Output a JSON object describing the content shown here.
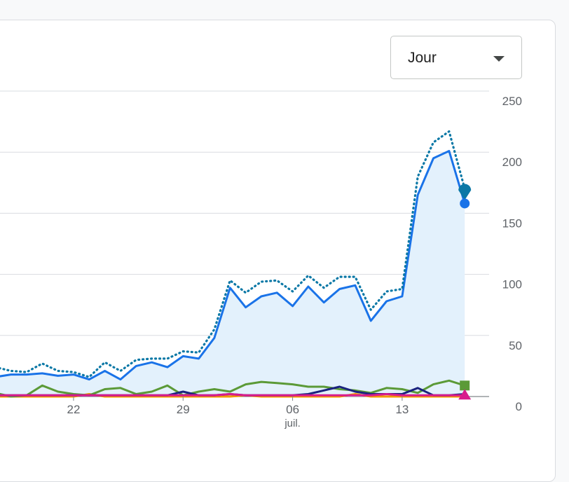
{
  "period_select": {
    "value": "Jour"
  },
  "chart_data": {
    "type": "line",
    "title": "",
    "xlabel": "",
    "ylabel": "",
    "x_ticks": [
      {
        "label": "22",
        "day": 22
      },
      {
        "label": "29",
        "day": 29
      },
      {
        "label": "06",
        "day": 36
      },
      {
        "label": "13",
        "day": 43
      }
    ],
    "month_labels": [
      {
        "label": "juil.",
        "day": 36
      }
    ],
    "ylim": [
      0,
      250
    ],
    "y_ticks": [
      0,
      50,
      100,
      150,
      200,
      250
    ],
    "grid": true,
    "x_day_range": [
      17.3,
      48.2
    ],
    "colors": {
      "primary": "#1a73e8",
      "dotted": "#0b78a6",
      "area": "#e3f1fc",
      "green": "#5b9a37",
      "navy": "#1a237e",
      "pink": "#d81b8c",
      "orange": "#f29900",
      "grid": "#dadce0"
    },
    "series": [
      {
        "key": "dotted",
        "style": "dotted",
        "color": "#0b78a6",
        "marker": "pin",
        "points": [
          [
            17,
            24
          ],
          [
            18,
            21
          ],
          [
            19,
            20
          ],
          [
            20,
            27
          ],
          [
            21,
            21
          ],
          [
            22,
            20
          ],
          [
            23,
            16
          ],
          [
            24,
            28
          ],
          [
            25,
            21
          ],
          [
            26,
            30
          ],
          [
            27,
            31
          ],
          [
            28,
            31
          ],
          [
            29,
            37
          ],
          [
            30,
            36
          ],
          [
            31,
            55
          ],
          [
            32,
            95
          ],
          [
            33,
            85
          ],
          [
            34,
            94
          ],
          [
            35,
            95
          ],
          [
            36,
            86
          ],
          [
            37,
            99
          ],
          [
            38,
            89
          ],
          [
            39,
            98
          ],
          [
            40,
            98
          ],
          [
            41,
            71
          ],
          [
            42,
            86
          ],
          [
            43,
            88
          ],
          [
            44,
            180
          ],
          [
            45,
            208
          ],
          [
            46,
            217
          ],
          [
            47,
            170
          ]
        ]
      },
      {
        "key": "primary",
        "style": "solid",
        "color": "#1a73e8",
        "marker": "circle",
        "area": true,
        "points": [
          [
            17,
            16
          ],
          [
            18,
            18
          ],
          [
            19,
            18
          ],
          [
            20,
            19
          ],
          [
            21,
            17
          ],
          [
            22,
            18
          ],
          [
            23,
            14
          ],
          [
            24,
            21
          ],
          [
            25,
            14
          ],
          [
            26,
            25
          ],
          [
            27,
            28
          ],
          [
            28,
            24
          ],
          [
            29,
            33
          ],
          [
            30,
            31
          ],
          [
            31,
            48
          ],
          [
            32,
            89
          ],
          [
            33,
            73
          ],
          [
            34,
            82
          ],
          [
            35,
            85
          ],
          [
            36,
            74
          ],
          [
            37,
            90
          ],
          [
            38,
            77
          ],
          [
            39,
            88
          ],
          [
            40,
            91
          ],
          [
            41,
            62
          ],
          [
            42,
            78
          ],
          [
            43,
            82
          ],
          [
            44,
            165
          ],
          [
            45,
            195
          ],
          [
            46,
            201
          ],
          [
            47,
            158
          ]
        ]
      },
      {
        "key": "green",
        "style": "solid",
        "color": "#5b9a37",
        "marker": "square",
        "points": [
          [
            17,
            3
          ],
          [
            18,
            0
          ],
          [
            19,
            1
          ],
          [
            20,
            9
          ],
          [
            21,
            4
          ],
          [
            22,
            2
          ],
          [
            23,
            1
          ],
          [
            24,
            6
          ],
          [
            25,
            7
          ],
          [
            26,
            2
          ],
          [
            27,
            4
          ],
          [
            28,
            9
          ],
          [
            29,
            1
          ],
          [
            30,
            4
          ],
          [
            31,
            6
          ],
          [
            32,
            4
          ],
          [
            33,
            10
          ],
          [
            34,
            12
          ],
          [
            35,
            11
          ],
          [
            36,
            10
          ],
          [
            37,
            8
          ],
          [
            38,
            8
          ],
          [
            39,
            6
          ],
          [
            40,
            5
          ],
          [
            41,
            3
          ],
          [
            42,
            7
          ],
          [
            43,
            6
          ],
          [
            44,
            3
          ],
          [
            45,
            10
          ],
          [
            46,
            13
          ],
          [
            47,
            9
          ]
        ]
      },
      {
        "key": "navy",
        "style": "solid",
        "color": "#1a237e",
        "marker": "none",
        "points": [
          [
            17,
            1
          ],
          [
            18,
            1
          ],
          [
            19,
            1
          ],
          [
            20,
            1
          ],
          [
            21,
            1
          ],
          [
            22,
            1
          ],
          [
            23,
            1
          ],
          [
            24,
            1
          ],
          [
            25,
            1
          ],
          [
            26,
            1
          ],
          [
            27,
            1
          ],
          [
            28,
            1
          ],
          [
            29,
            4
          ],
          [
            30,
            1
          ],
          [
            31,
            1
          ],
          [
            32,
            2
          ],
          [
            33,
            1
          ],
          [
            34,
            1
          ],
          [
            35,
            1
          ],
          [
            36,
            1
          ],
          [
            37,
            2
          ],
          [
            38,
            5
          ],
          [
            39,
            8
          ],
          [
            40,
            4
          ],
          [
            41,
            2
          ],
          [
            42,
            2
          ],
          [
            43,
            2
          ],
          [
            44,
            7
          ],
          [
            45,
            1
          ],
          [
            46,
            1
          ],
          [
            47,
            2
          ]
        ]
      },
      {
        "key": "orange",
        "style": "solid",
        "color": "#f29900",
        "marker": "none",
        "points": [
          [
            17,
            0
          ],
          [
            18,
            0
          ],
          [
            19,
            0
          ],
          [
            20,
            0
          ],
          [
            21,
            0
          ],
          [
            22,
            0
          ],
          [
            23,
            2
          ],
          [
            24,
            0
          ],
          [
            25,
            0
          ],
          [
            26,
            0
          ],
          [
            27,
            0
          ],
          [
            28,
            0
          ],
          [
            29,
            0
          ],
          [
            30,
            0
          ],
          [
            31,
            0
          ],
          [
            32,
            0
          ],
          [
            33,
            1
          ],
          [
            34,
            0
          ],
          [
            35,
            0
          ],
          [
            36,
            0
          ],
          [
            37,
            0
          ],
          [
            38,
            0
          ],
          [
            39,
            0
          ],
          [
            40,
            2
          ],
          [
            41,
            0
          ],
          [
            42,
            0
          ],
          [
            43,
            0
          ],
          [
            44,
            0
          ],
          [
            45,
            0
          ],
          [
            46,
            0
          ],
          [
            47,
            0
          ]
        ]
      },
      {
        "key": "pink",
        "style": "solid",
        "color": "#d81b8c",
        "marker": "triangle",
        "points": [
          [
            17,
            1
          ],
          [
            18,
            1
          ],
          [
            19,
            1
          ],
          [
            20,
            1
          ],
          [
            21,
            1
          ],
          [
            22,
            1
          ],
          [
            23,
            1
          ],
          [
            24,
            1
          ],
          [
            25,
            1
          ],
          [
            26,
            1
          ],
          [
            27,
            1
          ],
          [
            28,
            1
          ],
          [
            29,
            1
          ],
          [
            30,
            1
          ],
          [
            31,
            1
          ],
          [
            32,
            2
          ],
          [
            33,
            1
          ],
          [
            34,
            1
          ],
          [
            35,
            1
          ],
          [
            36,
            1
          ],
          [
            37,
            1
          ],
          [
            38,
            1
          ],
          [
            39,
            1
          ],
          [
            40,
            1
          ],
          [
            41,
            1
          ],
          [
            42,
            2
          ],
          [
            43,
            1
          ],
          [
            44,
            1
          ],
          [
            45,
            1
          ],
          [
            46,
            1
          ],
          [
            47,
            1
          ]
        ]
      }
    ]
  }
}
